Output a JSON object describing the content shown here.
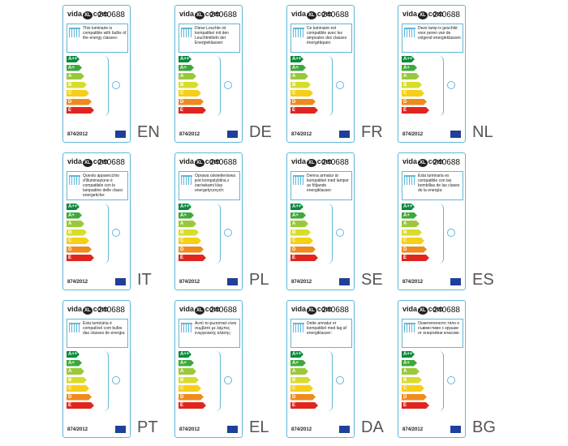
{
  "brand": {
    "prefix": "vida",
    "mark": "XL",
    "suffix": "com"
  },
  "code": "240688",
  "regulation": "874/2012",
  "classes": [
    "A++",
    "A+",
    "A",
    "B",
    "C",
    "D",
    "E"
  ],
  "class_colors": [
    "#0a8a3c",
    "#3ca93a",
    "#9bc83b",
    "#d8dc2a",
    "#f6cf16",
    "#ee8a1e",
    "#e0251f"
  ],
  "labels": [
    {
      "lang": "EN",
      "text": "This luminaire is compatible with bulbs of the energy classes:"
    },
    {
      "lang": "DE",
      "text": "Diese Leuchte ist kompatibel mit den Leuchtmitteln der Energieklassen:"
    },
    {
      "lang": "FR",
      "text": "Ce luminaire est compatible avec les ampoules des classes énergétiques:"
    },
    {
      "lang": "NL",
      "text": "Deze lamp is geschikt voor peren van de volgend energieklassen:"
    },
    {
      "lang": "IT",
      "text": "Questo apparecchio d'illuminazione è compatibile con le lampadine delle classi energetiche:"
    },
    {
      "lang": "PL",
      "text": "Oprawa oświetleniowa jest kompatybilna z żarówkami klas energetycznych:"
    },
    {
      "lang": "SE",
      "text": "Denna armatur är kompatibel med lampor av följande energiklasser:"
    },
    {
      "lang": "ES",
      "text": "Esta luminaria es compatible con las bombillas de las clases de la energía:"
    },
    {
      "lang": "PT",
      "text": "Esta luminária é compatível com bulbs das classes de energia:"
    },
    {
      "lang": "EL",
      "text": "Αυτό το φωτιστικό είναι συμβατό με λάμπες ενεργειακής κλάσης:"
    },
    {
      "lang": "DA",
      "text": "Dette armatur er kompatibel med lag af energiklasser:"
    },
    {
      "lang": "BG",
      "text": "Осветителното тяло е съвместимо с крушки от енергийни класове:"
    }
  ]
}
